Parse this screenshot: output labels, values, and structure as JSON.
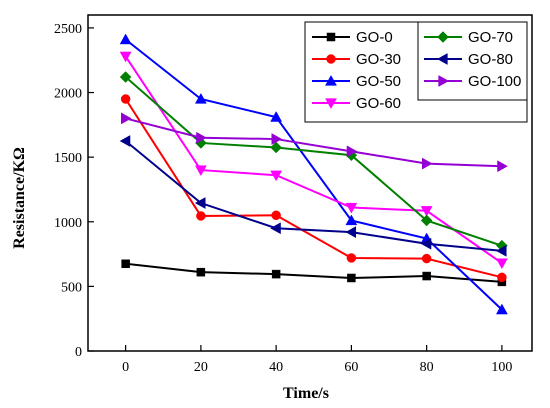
{
  "chart_data": {
    "type": "line",
    "xlabel": "Time/s",
    "ylabel": "Resistance/KΩ",
    "x": [
      0,
      20,
      40,
      60,
      80,
      100
    ],
    "xticks": [
      0,
      20,
      40,
      60,
      80,
      100
    ],
    "yticks": [
      0,
      500,
      1000,
      1500,
      2000,
      2500
    ],
    "xlim": [
      -10,
      108
    ],
    "ylim": [
      0,
      2600
    ],
    "grid": false,
    "legend_placement": "top-right",
    "series": [
      {
        "name": "GO-0",
        "color": "#000000",
        "marker": "square",
        "values": [
          675,
          610,
          595,
          565,
          580,
          535
        ]
      },
      {
        "name": "GO-30",
        "color": "#ff0000",
        "marker": "circle",
        "values": [
          1950,
          1045,
          1050,
          720,
          715,
          570
        ]
      },
      {
        "name": "GO-50",
        "color": "#0000ff",
        "marker": "triangle-up",
        "values": [
          2410,
          1950,
          1810,
          1010,
          870,
          320
        ]
      },
      {
        "name": "GO-60",
        "color": "#ff00ff",
        "marker": "triangle-down",
        "values": [
          2280,
          1400,
          1360,
          1110,
          1085,
          680
        ]
      },
      {
        "name": "GO-70",
        "color": "#008000",
        "marker": "diamond",
        "values": [
          2120,
          1610,
          1575,
          1515,
          1010,
          815
        ]
      },
      {
        "name": "GO-80",
        "color": "#00008b",
        "marker": "triangle-left",
        "values": [
          1625,
          1145,
          950,
          920,
          830,
          775
        ]
      },
      {
        "name": "GO-100",
        "color": "#9400d3",
        "marker": "triangle-right",
        "values": [
          1800,
          1650,
          1640,
          1545,
          1450,
          1430
        ]
      }
    ]
  }
}
